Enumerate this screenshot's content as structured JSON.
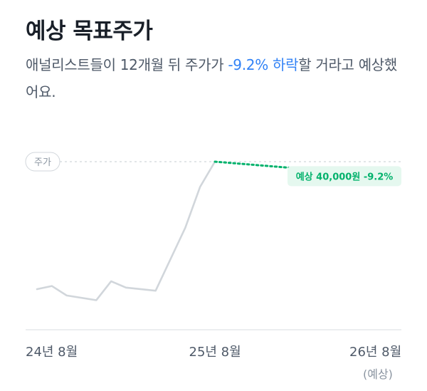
{
  "header": {
    "title": "예상 목표주가",
    "desc_before": "애널리스트들이 12개월 뒤 주가가 ",
    "desc_highlight": "-9.2% 하락",
    "desc_after": "할 거라고 예상했어요."
  },
  "chart_data": {
    "type": "line",
    "series": [
      {
        "name": "주가",
        "values": [
          {
            "x": 0.0,
            "y": 0.19
          },
          {
            "x": 0.5,
            "y": 0.21
          },
          {
            "x": 1.0,
            "y": 0.15
          },
          {
            "x": 2.0,
            "y": 0.12
          },
          {
            "x": 2.5,
            "y": 0.24
          },
          {
            "x": 3.0,
            "y": 0.2
          },
          {
            "x": 4.0,
            "y": 0.18
          },
          {
            "x": 5.0,
            "y": 0.58
          },
          {
            "x": 5.5,
            "y": 0.84
          },
          {
            "x": 6.0,
            "y": 1.0
          }
        ]
      },
      {
        "name": "예상",
        "values": [
          {
            "x": 6.0,
            "y": 1.0
          },
          {
            "x": 12.0,
            "y": 0.908
          }
        ]
      }
    ],
    "reference_line_label": "주가",
    "forecast_label": "예상 40,000원 -9.2%",
    "x_ticks": [
      {
        "x": 0,
        "label": "24년 8월",
        "sub": ""
      },
      {
        "x": 6,
        "label": "25년 8월",
        "sub": ""
      },
      {
        "x": 12,
        "label": "26년 8월",
        "sub": "(예상)"
      }
    ],
    "colors": {
      "price_line": "#d1d6db",
      "forecast_line": "#03b26c",
      "forecast_label_bg": "#e5f8ef",
      "ref_line": "#d1d6db",
      "axis": "#e5e8eb",
      "highlight": "#3182f6"
    }
  }
}
